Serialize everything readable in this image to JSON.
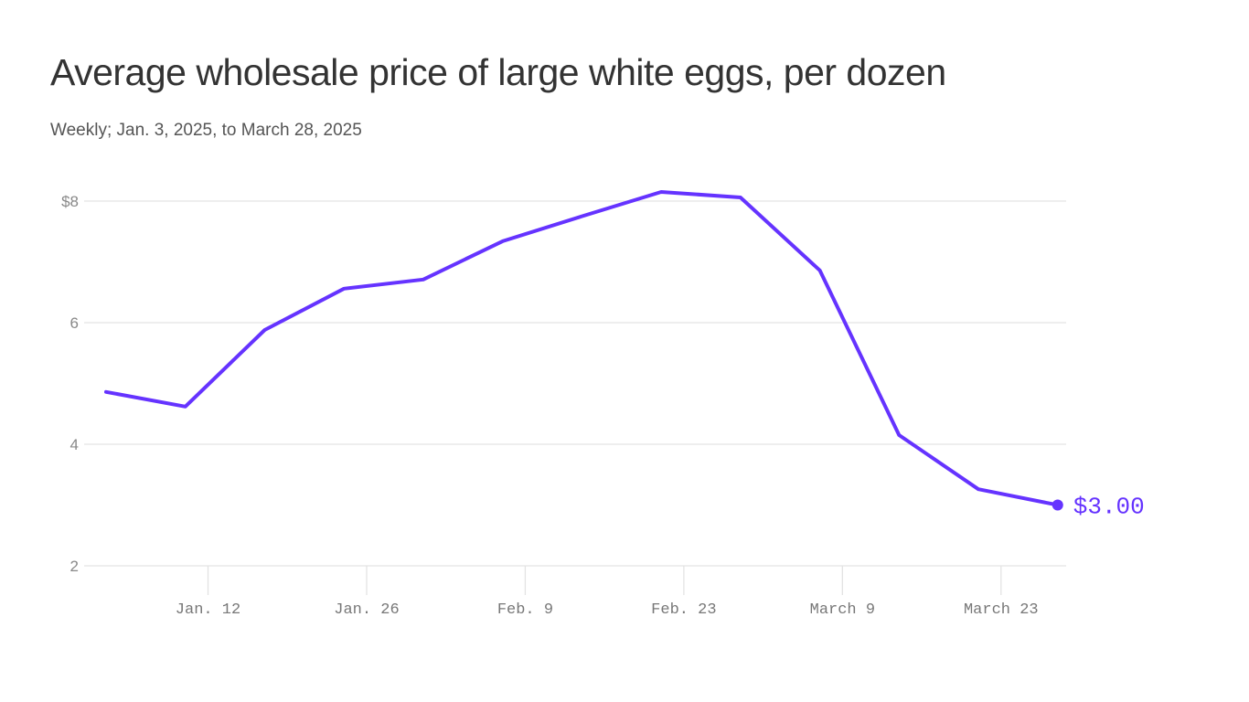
{
  "chart_data": {
    "type": "line",
    "title": "Average wholesale price of large white eggs, per dozen",
    "subtitle": "Weekly; Jan. 3, 2025, to March 28, 2025",
    "x": [
      "2025-01-03",
      "2025-01-10",
      "2025-01-17",
      "2025-01-24",
      "2025-01-31",
      "2025-02-07",
      "2025-02-14",
      "2025-02-21",
      "2025-02-28",
      "2025-03-07",
      "2025-03-14",
      "2025-03-21",
      "2025-03-28"
    ],
    "series": [
      {
        "values": [
          4.86,
          4.62,
          5.88,
          6.56,
          6.71,
          7.34,
          7.75,
          8.15,
          8.06,
          6.86,
          4.15,
          3.26,
          3.0
        ]
      }
    ],
    "ylim": [
      2,
      8
    ],
    "yticks": [
      {
        "value": 8,
        "label": "$8"
      },
      {
        "value": 6,
        "label": "6"
      },
      {
        "value": 4,
        "label": "4"
      },
      {
        "value": 2,
        "label": "2"
      }
    ],
    "xticks": [
      {
        "date": "2025-01-12",
        "label": "Jan. 12"
      },
      {
        "date": "2025-01-26",
        "label": "Jan. 26"
      },
      {
        "date": "2025-02-09",
        "label": "Feb. 9"
      },
      {
        "date": "2025-02-23",
        "label": "Feb. 23"
      },
      {
        "date": "2025-03-09",
        "label": "March 9"
      },
      {
        "date": "2025-03-23",
        "label": "March 23"
      }
    ],
    "end_label": "$3.00",
    "grid": true,
    "colors": {
      "line": "#6533ff",
      "grid": "#e3e3e3"
    }
  }
}
